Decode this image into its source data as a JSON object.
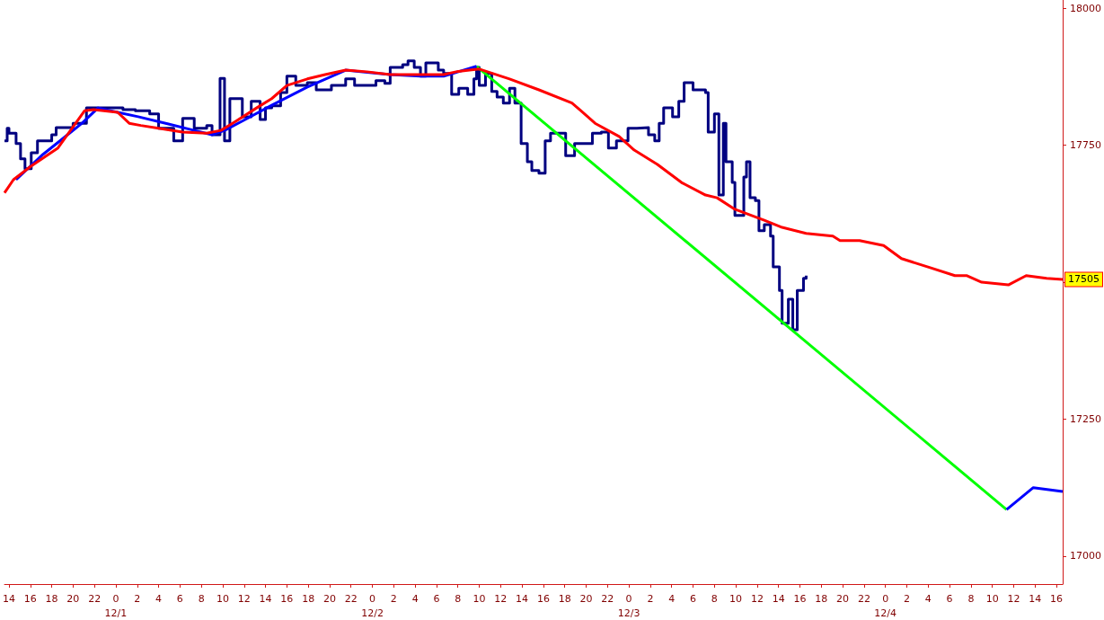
{
  "chart_data": {
    "type": "line",
    "xlim": [
      "--11-30T13:35",
      "--12-04T16:35"
    ],
    "ylim": [
      16949,
      18015
    ],
    "xticks": [
      {
        "value": "--11-30T14:00",
        "label": "14"
      },
      {
        "value": "--11-30T16:00",
        "label": "16"
      },
      {
        "value": "--11-30T18:00",
        "label": "18"
      },
      {
        "value": "--11-30T20:00",
        "label": "20"
      },
      {
        "value": "--11-30T22:00",
        "label": "22"
      },
      {
        "value": "--12-01T00:00",
        "label": "0\n12/1"
      },
      {
        "value": "--12-01T02:00",
        "label": "2"
      },
      {
        "value": "--12-01T04:00",
        "label": "4"
      },
      {
        "value": "--12-01T06:00",
        "label": "6"
      },
      {
        "value": "--12-01T08:00",
        "label": "8"
      },
      {
        "value": "--12-01T10:00",
        "label": "10"
      },
      {
        "value": "--12-01T12:00",
        "label": "12"
      },
      {
        "value": "--12-01T14:00",
        "label": "14"
      },
      {
        "value": "--12-01T16:00",
        "label": "16"
      },
      {
        "value": "--12-01T18:00",
        "label": "18"
      },
      {
        "value": "--12-01T20:00",
        "label": "20"
      },
      {
        "value": "--12-01T22:00",
        "label": "22"
      },
      {
        "value": "--12-02T00:00",
        "label": "0\n12/2"
      },
      {
        "value": "--12-02T02:00",
        "label": "2"
      },
      {
        "value": "--12-02T04:00",
        "label": "4"
      },
      {
        "value": "--12-02T06:00",
        "label": "6"
      },
      {
        "value": "--12-02T08:00",
        "label": "8"
      },
      {
        "value": "--12-02T10:00",
        "label": "10"
      },
      {
        "value": "--12-02T12:00",
        "label": "12"
      },
      {
        "value": "--12-02T14:00",
        "label": "14"
      },
      {
        "value": "--12-02T16:00",
        "label": "16"
      },
      {
        "value": "--12-02T18:00",
        "label": "18"
      },
      {
        "value": "--12-02T20:00",
        "label": "20"
      },
      {
        "value": "--12-02T22:00",
        "label": "22"
      },
      {
        "value": "--12-03T00:00",
        "label": "0\n12/3"
      },
      {
        "value": "--12-03T02:00",
        "label": "2"
      },
      {
        "value": "--12-03T04:00",
        "label": "4"
      },
      {
        "value": "--12-03T06:00",
        "label": "6"
      },
      {
        "value": "--12-03T08:00",
        "label": "8"
      },
      {
        "value": "--12-03T10:00",
        "label": "10"
      },
      {
        "value": "--12-03T12:00",
        "label": "12"
      },
      {
        "value": "--12-03T14:00",
        "label": "14"
      },
      {
        "value": "--12-03T16:00",
        "label": "16"
      },
      {
        "value": "--12-03T18:00",
        "label": "18"
      },
      {
        "value": "--12-03T20:00",
        "label": "20"
      },
      {
        "value": "--12-03T22:00",
        "label": "22"
      },
      {
        "value": "--12-04T00:00",
        "label": "0\n12/4"
      },
      {
        "value": "--12-04T02:00",
        "label": "2"
      },
      {
        "value": "--12-04T04:00",
        "label": "4"
      },
      {
        "value": "--12-04T06:00",
        "label": "6"
      },
      {
        "value": "--12-04T08:00",
        "label": "8"
      },
      {
        "value": "--12-04T10:00",
        "label": "10"
      },
      {
        "value": "--12-04T12:00",
        "label": "12"
      },
      {
        "value": "--12-04T14:00",
        "label": "14"
      },
      {
        "value": "--12-04T16:00",
        "label": "16"
      }
    ],
    "yticks": [
      17000,
      17250,
      {
        "value": 17500,
        "label": null
      },
      17750,
      18000
    ],
    "annotations": [
      {
        "text": "17505",
        "x": "--12-04T16:35",
        "y": 17505
      }
    ],
    "series": [
      {
        "type": "step",
        "color": "#000080",
        "x": [
          "--11-30T13:35",
          "--11-30T13:50",
          "--11-30T14:00",
          "--11-30T14:40",
          "--11-30T15:05",
          "--11-30T15:30",
          "--11-30T16:05",
          "--11-30T16:40",
          "--11-30T18:00",
          "--11-30T18:25",
          "--11-30T20:00",
          "--11-30T21:15",
          "--11-30T22:30",
          "--12-01T00:40",
          "--12-01T01:50",
          "--12-01T03:10",
          "--12-01T04:00",
          "--12-01T05:25",
          "--12-01T06:15",
          "--12-01T07:20",
          "--12-01T08:30",
          "--12-01T09:00",
          "--12-01T09:45",
          "--12-01T10:10",
          "--12-01T10:40",
          "--12-01T11:50",
          "--12-01T12:40",
          "--12-01T13:30",
          "--12-01T14:00",
          "--12-01T14:35",
          "--12-01T15:25",
          "--12-01T16:00",
          "--12-01T16:50",
          "--12-01T17:55",
          "--12-01T18:45",
          "--12-01T20:10",
          "--12-01T21:30",
          "--12-01T22:20",
          "--12-02T00:20",
          "--12-02T01:10",
          "--12-02T01:40",
          "--12-02T02:50",
          "--12-02T03:20",
          "--12-02T03:55",
          "--12-02T04:30",
          "--12-02T05:00",
          "--12-02T06:10",
          "--12-02T06:40",
          "--12-02T07:25",
          "--12-02T08:05",
          "--12-02T08:55",
          "--12-02T09:30",
          "--12-02T09:45",
          "--12-02T10:00",
          "--12-02T10:35",
          "--12-02T11:10",
          "--12-02T11:40",
          "--12-02T12:15",
          "--12-02T12:50",
          "--12-02T13:20",
          "--12-02T13:55",
          "--12-02T14:30",
          "--12-02T14:55",
          "--12-02T15:35",
          "--12-02T16:10",
          "--12-02T16:40",
          "--12-02T18:05",
          "--12-02T18:55",
          "--12-02T20:35",
          "--12-02T21:25",
          "--12-02T22:05",
          "--12-02T22:50",
          "--12-02T23:55",
          "--12-03T00:45",
          "--12-03T01:50",
          "--12-03T02:25",
          "--12-03T02:50",
          "--12-03T03:15",
          "--12-03T04:05",
          "--12-03T04:40",
          "--12-03T05:10",
          "--12-03T06:00",
          "--12-03T07:10",
          "--12-03T07:25",
          "--12-03T08:00",
          "--12-03T08:25",
          "--12-03T08:50",
          "--12-03T09:05",
          "--12-03T09:40",
          "--12-03T09:55",
          "--12-03T10:45",
          "--12-03T11:00",
          "--12-03T11:20",
          "--12-03T11:50",
          "--12-03T12:10",
          "--12-03T12:40",
          "--12-03T13:15",
          "--12-03T13:30",
          "--12-03T14:05",
          "--12-03T14:20",
          "--12-03T14:55",
          "--12-03T15:20",
          "--12-03T15:45",
          "--12-03T16:20",
          "--12-03T16:35"
        ],
        "values": [
          17758,
          17781,
          17772,
          17753,
          17725,
          17707,
          17736,
          17758,
          17769,
          17782,
          17790,
          17818,
          17818,
          17815,
          17813,
          17807,
          17781,
          17758,
          17799,
          17781,
          17786,
          17769,
          17872,
          17758,
          17835,
          17802,
          17830,
          17797,
          17818,
          17822,
          17846,
          17876,
          17859,
          17864,
          17851,
          17859,
          17871,
          17859,
          17868,
          17863,
          17892,
          17897,
          17904,
          17892,
          17876,
          17900,
          17887,
          17881,
          17843,
          17854,
          17843,
          17871,
          17892,
          17859,
          17881,
          17848,
          17838,
          17827,
          17854,
          17827,
          17753,
          17720,
          17704,
          17699,
          17758,
          17772,
          17731,
          17753,
          17772,
          17774,
          17745,
          17758,
          17781,
          17782,
          17769,
          17758,
          17790,
          17818,
          17802,
          17830,
          17864,
          17851,
          17846,
          17774,
          17807,
          17659,
          17790,
          17720,
          17682,
          17622,
          17692,
          17720,
          17654,
          17649,
          17594,
          17605,
          17584,
          17528,
          17485,
          17425,
          17469,
          17413,
          17485,
          17507,
          17512
        ]
      },
      {
        "color": "#ff0000",
        "x": [
          "--11-30T13:35",
          "--11-30T14:25",
          "--11-30T16:05",
          "--11-30T18:35",
          "--11-30T21:05",
          "--11-30T21:55",
          "--12-01T00:10",
          "--12-01T01:15",
          "--12-01T02:20",
          "--12-01T04:00",
          "--12-01T06:15",
          "--12-01T08:30",
          "--12-01T09:50",
          "--12-01T11:15",
          "--12-01T13:10",
          "--12-01T14:35",
          "--12-01T16:00",
          "--12-01T17:55",
          "--12-01T19:35",
          "--12-01T21:30",
          "--12-01T23:30",
          "--12-02T01:40",
          "--12-02T04:30",
          "--12-02T06:40",
          "--12-02T07:50",
          "--12-02T10:00",
          "--12-02T12:50",
          "--12-02T15:35",
          "--12-02T18:40",
          "--12-02T19:30",
          "--12-02T20:50",
          "--12-02T23:05",
          "--12-03T00:30",
          "--12-03T02:40",
          "--12-03T04:55",
          "--12-03T07:10",
          "--12-03T08:15",
          "--12-03T09:55",
          "--12-03T12:40",
          "--12-03T14:20",
          "--12-03T16:35",
          "--12-03T19:05",
          "--12-03T19:45",
          "--12-03T21:35",
          "--12-03T23:50",
          "--12-04T01:30",
          "--12-04T04:15",
          "--12-04T06:30",
          "--12-04T07:35",
          "--12-04T09:00",
          "--12-04T11:30",
          "--12-04T13:10",
          "--12-04T15:05",
          "--12-04T16:35"
        ],
        "values": [
          17663,
          17687,
          17712,
          17745,
          17813,
          17815,
          17810,
          17790,
          17786,
          17781,
          17774,
          17772,
          17777,
          17794,
          17818,
          17835,
          17859,
          17871,
          17879,
          17887,
          17884,
          17879,
          17879,
          17879,
          17884,
          17889,
          17871,
          17851,
          17827,
          17813,
          17790,
          17766,
          17741,
          17715,
          17682,
          17659,
          17654,
          17633,
          17613,
          17600,
          17589,
          17584,
          17576,
          17576,
          17567,
          17543,
          17526,
          17512,
          17512,
          17500,
          17495,
          17512,
          17507,
          17505
        ]
      },
      {
        "color": "#0000ff",
        "x": [
          "--11-30T14:40",
          "--11-30T17:10",
          "--11-30T19:10",
          "--11-30T20:50",
          "--11-30T22:20",
          "--12-01T00:10",
          "--12-01T02:05",
          "--12-01T04:50",
          "--12-01T07:20",
          "--12-01T09:00",
          "--12-01T10:10",
          "--12-01T11:50",
          "--12-01T14:35",
          "--12-01T17:55",
          "--12-01T21:30",
          "--12-01T22:55",
          "--12-02T01:40",
          "--12-02T04:30",
          "--12-02T06:40",
          "--12-02T09:45",
          "--12-03T12:00",
          "--12-04T11:20",
          "--12-04T13:50",
          "--12-04T16:35"
        ],
        "values": [
          17687,
          17733,
          17764,
          17790,
          17818,
          17810,
          17802,
          17789,
          17777,
          17769,
          17777,
          17794,
          17823,
          17856,
          17887,
          17884,
          17879,
          17876,
          17876,
          17894,
          null,
          17085,
          17125,
          17118
        ]
      },
      {
        "color": "#00ff00",
        "x": [
          "--12-02T09:45",
          "--12-04T11:20"
        ],
        "values": [
          17894,
          17085
        ]
      }
    ]
  }
}
